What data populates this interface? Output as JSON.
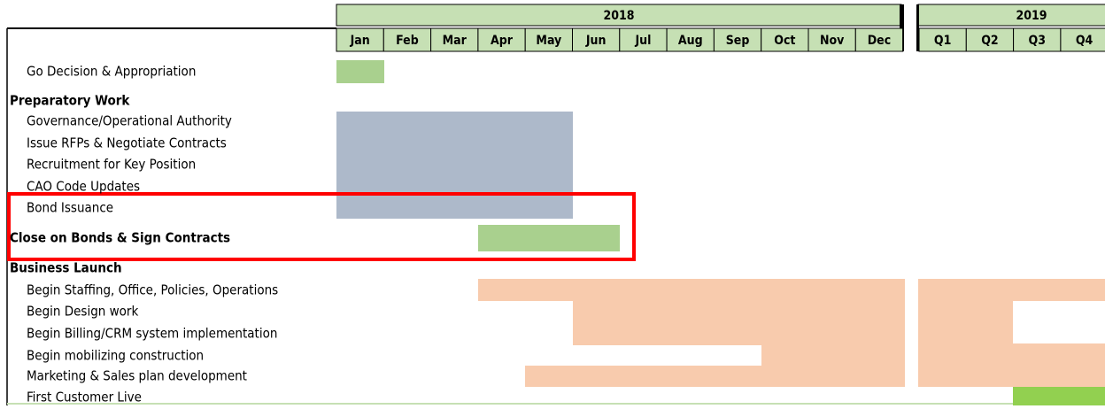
{
  "header": {
    "years": [
      "2018",
      "2019"
    ],
    "months": [
      "Jan",
      "Feb",
      "Mar",
      "Apr",
      "May",
      "Jun",
      "Jul",
      "Aug",
      "Sep",
      "Oct",
      "Nov",
      "Dec"
    ],
    "quarters": [
      "Q1",
      "Q2",
      "Q3",
      "Q4"
    ]
  },
  "rows": [
    "Go Decision & Appropriation",
    "Preparatory Work",
    "Governance/Operational Authority",
    "Issue RFPs & Negotiate Contracts",
    "Recruitment for Key Position",
    "CAO Code Updates",
    "Bond Issuance",
    "Close on Bonds & Sign Contracts",
    "Business Launch",
    "Begin Staffing, Office, Policies, Operations",
    "Begin Design work",
    "Begin Billing/CRM system implementation",
    "Begin mobilizing construction",
    "Marketing & Sales plan development",
    "First Customer Live"
  ]
}
